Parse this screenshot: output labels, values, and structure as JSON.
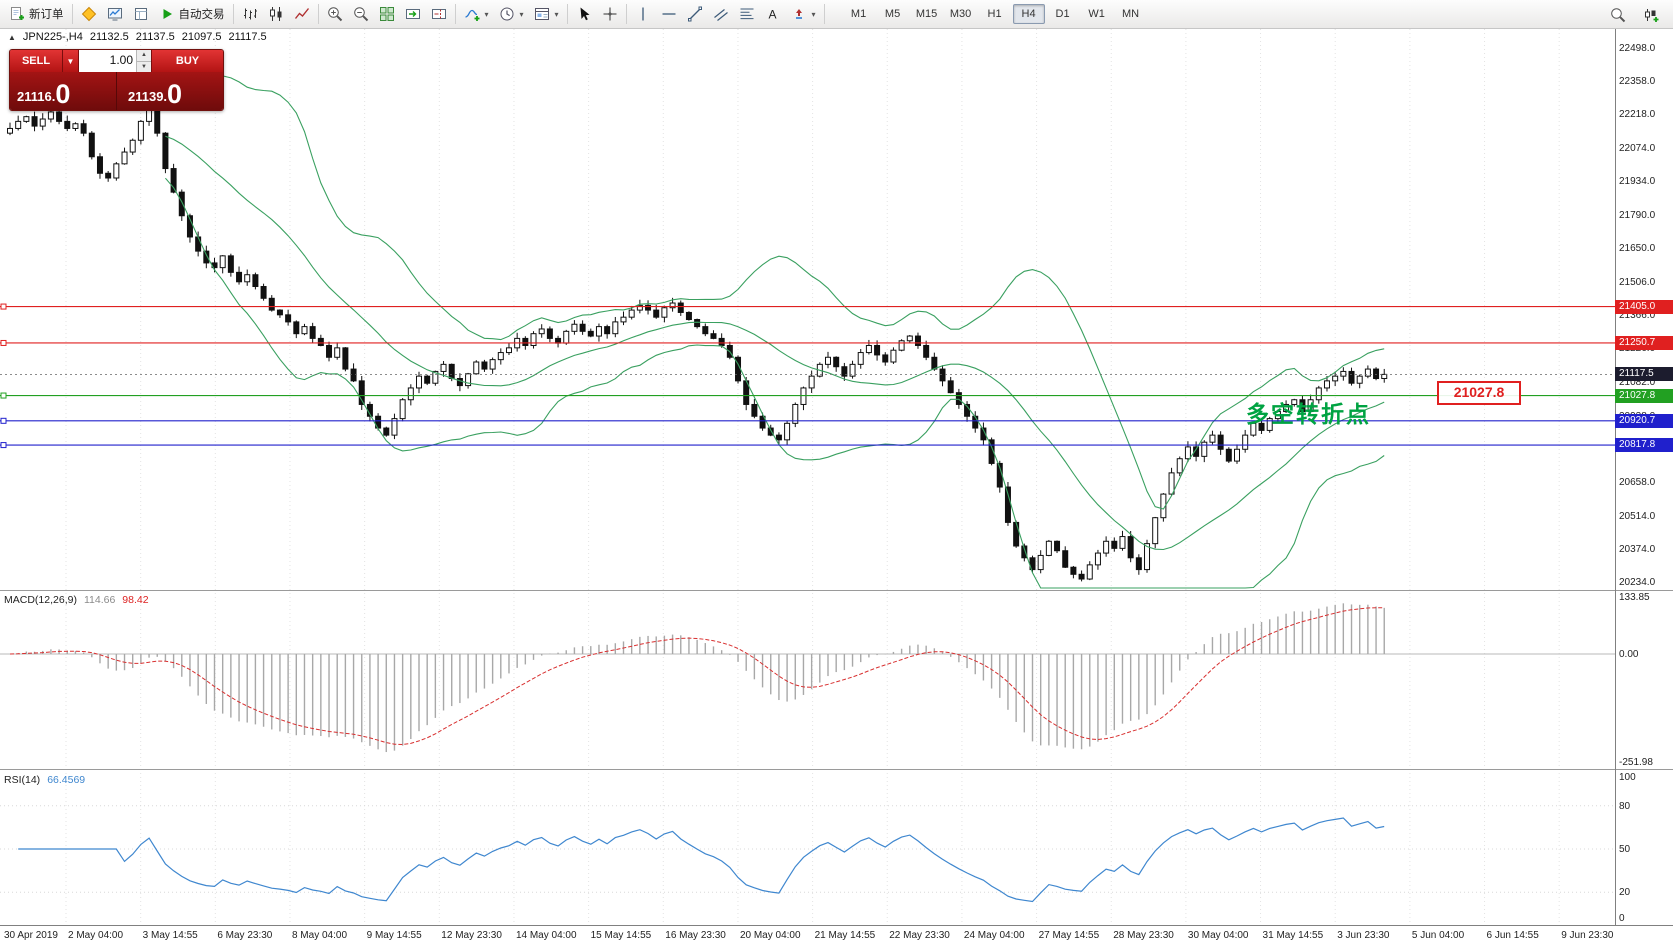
{
  "toolbar": {
    "new_order_label": "新订单",
    "autotrade_label": "自动交易",
    "timeframes": [
      "M1",
      "M5",
      "M15",
      "M30",
      "H1",
      "H4",
      "D1",
      "W1",
      "MN"
    ],
    "active_timeframe": "H4",
    "icon_names": [
      "new-order-icon",
      "chart-wizard-icon",
      "market-watch-icon",
      "data-window-icon",
      "autotrading-play-icon",
      "bar-chart-icon",
      "candlestick-chart-icon",
      "line-chart-icon",
      "zoom-in-icon",
      "zoom-out-icon",
      "tile-windows-icon",
      "auto-scroll-icon",
      "chart-shift-icon",
      "indicators-icon",
      "periods-icon",
      "templates-icon",
      "cursor-icon",
      "crosshair-icon",
      "vertical-line-icon",
      "horizontal-line-icon",
      "trendline-icon",
      "channel-icon",
      "fibonacci-icon",
      "text-tool-icon",
      "arrows-tool-icon",
      "search-icon",
      "new-chart-icon"
    ]
  },
  "symbol_header": {
    "marker": "▲",
    "symbol": "JPN225-,H4",
    "open": "21132.5",
    "high": "21137.5",
    "low": "21097.5",
    "close": "21117.5"
  },
  "trade_panel": {
    "sell_label": "SELL",
    "buy_label": "BUY",
    "volume": "1.00",
    "sell_price": "21116.",
    "sell_price_big": "0",
    "buy_price": "21139.",
    "buy_price_big": "0"
  },
  "annotations": {
    "turning_point_text": "多空转折点",
    "price_note": "21027.8"
  },
  "indicator_labels": {
    "macd_name": "MACD(12,26,9)",
    "macd_value": "114.66",
    "macd_signal": "98.42",
    "rsi_name": "RSI(14)",
    "rsi_value": "66.4569"
  },
  "chart_data": {
    "type": "candlestick",
    "symbol": "JPN225-",
    "timeframe": "H4",
    "ohlc_current": {
      "open": 21132.5,
      "high": 21137.5,
      "low": 21097.5,
      "close": 21117.5
    },
    "ylim": [
      20203,
      22581
    ],
    "y_ticks": [
      "22498.0",
      "22358.0",
      "22218.0",
      "22074.0",
      "21934.0",
      "21790.0",
      "21650.0",
      "21506.0",
      "21366.0",
      "21226.0",
      "21082.0",
      "20938.0",
      "20798.0",
      "20658.0",
      "20514.0",
      "20374.0",
      "20234.0"
    ],
    "time_labels": [
      "30 Apr 2019",
      "2 May 04:00",
      "3 May 14:55",
      "6 May 23:30",
      "8 May 04:00",
      "9 May 14:55",
      "12 May 23:30",
      "14 May 04:00",
      "15 May 14:55",
      "16 May 23:30",
      "20 May 04:00",
      "21 May 14:55",
      "22 May 23:30",
      "24 May 04:00",
      "27 May 14:55",
      "28 May 23:30",
      "30 May 04:00",
      "31 May 14:55",
      "3 Jun 23:30",
      "5 Jun 04:00",
      "6 Jun 14:55",
      "9 Jun 23:30"
    ],
    "open_first": 22140,
    "closes": [
      22160,
      22190,
      22210,
      22170,
      22200,
      22230,
      22190,
      22160,
      22180,
      22140,
      22040,
      21970,
      21950,
      22010,
      22060,
      22110,
      22190,
      22250,
      22140,
      21990,
      21890,
      21790,
      21700,
      21640,
      21590,
      21570,
      21620,
      21550,
      21510,
      21540,
      21490,
      21440,
      21390,
      21370,
      21340,
      21290,
      21320,
      21270,
      21240,
      21190,
      21230,
      21140,
      21090,
      20990,
      20940,
      20890,
      20860,
      20930,
      21010,
      21060,
      21110,
      21080,
      21130,
      21160,
      21100,
      21070,
      21120,
      21170,
      21140,
      21180,
      21210,
      21230,
      21270,
      21240,
      21290,
      21310,
      21270,
      21250,
      21300,
      21330,
      21300,
      21280,
      21320,
      21290,
      21340,
      21360,
      21390,
      21410,
      21390,
      21360,
      21400,
      21420,
      21380,
      21350,
      21320,
      21290,
      21270,
      21240,
      21190,
      21090,
      20990,
      20940,
      20890,
      20860,
      20840,
      20910,
      20990,
      21060,
      21110,
      21160,
      21190,
      21150,
      21110,
      21160,
      21210,
      21240,
      21200,
      21170,
      21220,
      21260,
      21280,
      21240,
      21190,
      21140,
      21090,
      21040,
      20990,
      20940,
      20890,
      20840,
      20740,
      20640,
      20490,
      20390,
      20340,
      20290,
      20350,
      20410,
      20370,
      20300,
      20270,
      20250,
      20310,
      20360,
      20410,
      20380,
      20430,
      20340,
      20290,
      20400,
      20510,
      20610,
      20700,
      20760,
      20810,
      20770,
      20830,
      20860,
      20800,
      20750,
      20800,
      20860,
      20910,
      20880,
      20930,
      20960,
      20990,
      21010,
      20960,
      21010,
      21060,
      21090,
      21110,
      21130,
      21080,
      21110,
      21140,
      21100,
      21117.5
    ],
    "bollinger": {
      "period": 20,
      "deviation": 2,
      "color": "#3aa060"
    },
    "hlines": [
      {
        "price": 21405.0,
        "label": "21405.0",
        "color": "#e02020"
      },
      {
        "price": 21250.7,
        "label": "21250.7",
        "color": "#e02020"
      },
      {
        "price": 21027.8,
        "label": "21027.8",
        "color": "#22a022"
      },
      {
        "price": 20920.7,
        "label": "20920.7",
        "color": "#2020cc"
      },
      {
        "price": 20817.8,
        "label": "20817.8",
        "color": "#2020cc"
      }
    ],
    "current_price": {
      "price": 21117.5,
      "label": "21117.5",
      "color": "#1c1c2e"
    },
    "macd": {
      "fast": 12,
      "slow": 26,
      "signal": 9,
      "value": 114.66,
      "signal_value": 98.42,
      "scale": [
        {
          "label": "133.85",
          "v": 133.85
        },
        {
          "label": "0.00",
          "v": 0
        },
        {
          "label": "-251.98",
          "v": -251.98
        }
      ]
    },
    "rsi": {
      "period": 14,
      "value": 66.4569,
      "color": "#3f87cf",
      "scale": [
        {
          "label": "100",
          "v": 100
        },
        {
          "label": "80",
          "v": 80
        },
        {
          "label": "50",
          "v": 50
        },
        {
          "label": "20",
          "v": 20
        },
        {
          "label": "0",
          "v": 0
        }
      ]
    }
  }
}
